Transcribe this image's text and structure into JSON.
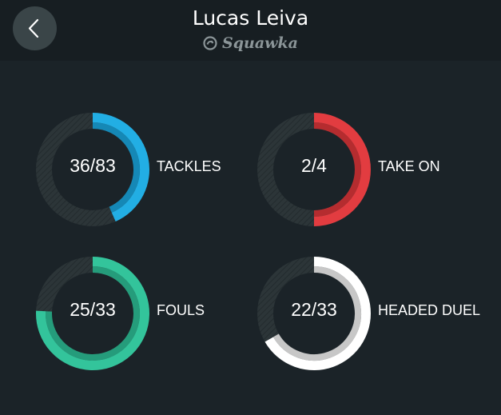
{
  "header": {
    "title": "Lucas Leiva",
    "brand": "Squawka"
  },
  "stats": [
    {
      "value_text": "36/83",
      "label": "TACKLES",
      "made": 36,
      "total": 83,
      "color": "#22aee4",
      "inner_color": "#1588b6"
    },
    {
      "value_text": "2/4",
      "label": "TAKE ON",
      "made": 2,
      "total": 4,
      "color": "#e23c40",
      "inner_color": "#b52c2f"
    },
    {
      "value_text": "25/33",
      "label": "FOULS",
      "made": 25,
      "total": 33,
      "color": "#33c49b",
      "inner_color": "#259c7b"
    },
    {
      "value_text": "22/33",
      "label": "HEADED DUEL",
      "made": 22,
      "total": 33,
      "color": "#ffffff",
      "inner_color": "#c7c7c7"
    }
  ],
  "colors": {
    "background": "#1b2328",
    "header": "#171e22",
    "track": "#2c3538"
  }
}
